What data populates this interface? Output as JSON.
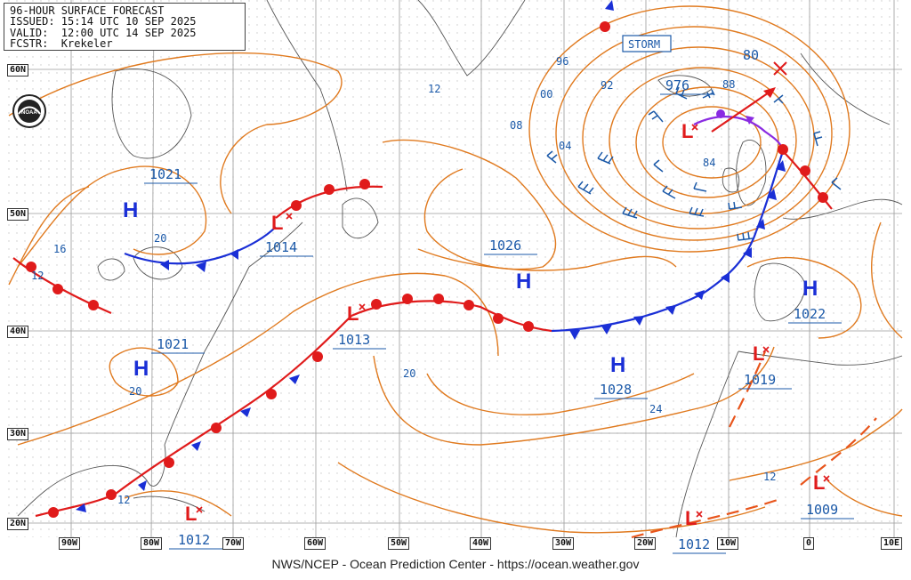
{
  "header": {
    "line1": "96-HOUR SURFACE FORECAST",
    "line2": "ISSUED: 15:14 UTC 10 SEP 2025",
    "line3": "VALID:  12:00 UTC 14 SEP 2025",
    "line4": "FCSTR:  Krekeler"
  },
  "footer": "NWS/NCEP - Ocean Prediction Center - https://ocean.weather.gov",
  "logo": "NOAA",
  "storm_label": "STORM",
  "lat_labels": [
    "60N",
    "50N",
    "40N",
    "30N",
    "20N"
  ],
  "lon_labels": [
    "90W",
    "80W",
    "70W",
    "60W",
    "50W",
    "40W",
    "30W",
    "20W",
    "10W",
    "0",
    "10E"
  ],
  "pressure_centers": [
    {
      "type": "H",
      "value": "1021"
    },
    {
      "type": "L",
      "value": "1014"
    },
    {
      "type": "H",
      "value": "1021"
    },
    {
      "type": "L",
      "value": "1013"
    },
    {
      "type": "L",
      "value": "1012"
    },
    {
      "type": "H",
      "value": "1026"
    },
    {
      "type": "H",
      "value": "1028"
    },
    {
      "type": "L",
      "value": "976"
    },
    {
      "type": "H",
      "value": "1022"
    },
    {
      "type": "L",
      "value": "1019"
    },
    {
      "type": "L",
      "value": "1009"
    },
    {
      "type": "L",
      "value": "1012"
    }
  ],
  "isobar_labels": [
    "96",
    "00",
    "92",
    "88",
    "84",
    "80",
    "04",
    "08",
    "12",
    "16",
    "12",
    "20",
    "20",
    "20",
    "24",
    "12",
    "12"
  ],
  "colors": {
    "isobar": "#e07a1f",
    "cold_front": "#1a2fd6",
    "warm_front": "#e01b1b",
    "occluded": "#8a2be2",
    "trough": "#e8551c",
    "text_blue": "#1b59a8",
    "grid": "#c8c8c8",
    "coast": "#5a5a5a"
  }
}
